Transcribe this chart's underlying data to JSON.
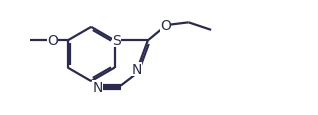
{
  "figsize": [
    3.18,
    1.16
  ],
  "dpi": 100,
  "background": "#ffffff",
  "line_color": "#2b2b4e",
  "line_width": 1.6,
  "font_size": 9,
  "xlim": [
    0.0,
    10.5
  ],
  "ylim": [
    0.2,
    3.8
  ]
}
